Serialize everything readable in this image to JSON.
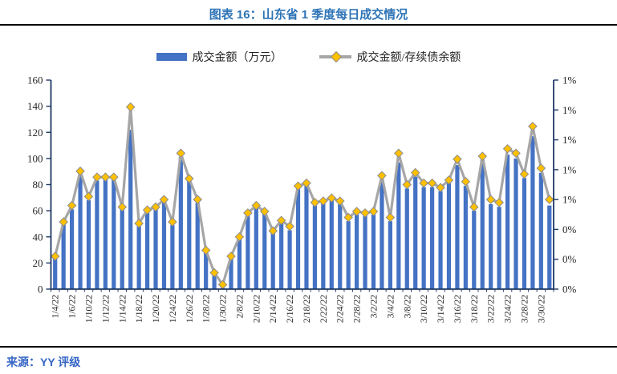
{
  "header": {
    "title": "图表 16：山东省 1 季度每日成交情况"
  },
  "legend": [
    {
      "label": "成交金额（万元）",
      "swatch": "bar-swatch"
    },
    {
      "label": "成交金额/存续债余额",
      "swatch": "line-marker-swatch"
    }
  ],
  "source": {
    "text": "来源：YY 评级"
  },
  "colors": {
    "title": "#2E74B6",
    "source": "#3465C4",
    "bar": "#4472C4",
    "line": "#A6A6A6",
    "marker": "#FFC000",
    "marker_stroke": "#8C8C8C",
    "axis": "#1F3864",
    "tick_label": "#262626"
  },
  "chart_data": {
    "type": "bar",
    "title": "图表 16：山东省 1 季度每日成交情况",
    "x_labels": [
      "1/4/22",
      "1/6/22",
      "1/10/22",
      "1/12/22",
      "1/14/22",
      "1/18/22",
      "1/20/22",
      "1/24/22",
      "1/26/22",
      "1/28/22",
      "1/30/22",
      "2/8/22",
      "2/10/22",
      "2/14/22",
      "2/16/22",
      "2/18/22",
      "2/22/22",
      "2/24/22",
      "2/28/22",
      "3/2/22",
      "3/4/22",
      "3/8/22",
      "3/10/22",
      "3/14/22",
      "3/16/22",
      "3/18/22",
      "3/22/22",
      "3/24/22",
      "3/28/22",
      "3/30/22"
    ],
    "label_every": 2,
    "series": [
      {
        "name": "成交金额（万元）",
        "type": "bar",
        "axis": "left",
        "values": [
          23,
          50,
          61,
          87,
          68,
          83,
          84,
          84,
          61,
          122,
          48,
          60,
          61,
          66,
          49,
          101,
          83,
          66,
          28,
          11,
          1,
          24,
          38,
          56,
          62,
          58,
          43,
          51,
          45,
          77,
          79,
          64,
          66,
          68,
          65,
          52,
          57,
          56,
          57,
          84,
          52,
          97,
          77,
          86,
          78,
          78,
          75,
          81,
          95,
          79,
          60,
          99,
          65,
          63,
          103,
          100,
          85,
          117,
          89,
          64
        ]
      },
      {
        "name": "成交金额/存续债余额",
        "type": "line",
        "axis": "right",
        "unit": "percent",
        "values": [
          0.22,
          0.45,
          0.56,
          0.79,
          0.62,
          0.75,
          0.75,
          0.75,
          0.55,
          1.22,
          0.44,
          0.53,
          0.55,
          0.6,
          0.45,
          0.91,
          0.74,
          0.6,
          0.26,
          0.11,
          0.03,
          0.22,
          0.35,
          0.51,
          0.56,
          0.52,
          0.39,
          0.46,
          0.42,
          0.69,
          0.71,
          0.58,
          0.59,
          0.61,
          0.59,
          0.48,
          0.52,
          0.51,
          0.52,
          0.76,
          0.48,
          0.91,
          0.7,
          0.78,
          0.71,
          0.71,
          0.68,
          0.73,
          0.87,
          0.72,
          0.55,
          0.89,
          0.6,
          0.58,
          0.94,
          0.91,
          0.77,
          1.09,
          0.81,
          0.6
        ]
      }
    ],
    "left_axis": {
      "min": 0,
      "max": 160,
      "step": 20,
      "ticks": [
        "0",
        "20",
        "40",
        "60",
        "80",
        "100",
        "120",
        "140",
        "160"
      ]
    },
    "right_axis": {
      "min_pct": 0,
      "max_pct": 1.4,
      "labels_top_to_bottom": [
        "1%",
        "1%",
        "1%",
        "1%",
        "1%",
        "0%",
        "0%",
        "0%"
      ]
    },
    "grid": "off",
    "legend_position": "top-center"
  }
}
